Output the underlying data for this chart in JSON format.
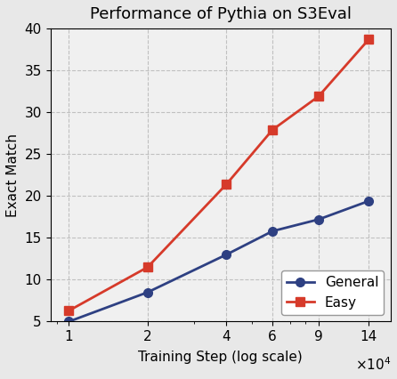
{
  "title": "Performance of Pythia on S3Eval",
  "xlabel": "Training Step (log scale)",
  "ylabel": "Exact Match",
  "x_values": [
    1,
    2,
    4,
    6,
    9,
    14
  ],
  "general_y": [
    5.0,
    8.5,
    13.0,
    15.8,
    17.2,
    19.4
  ],
  "easy_y": [
    6.3,
    11.5,
    21.4,
    27.9,
    31.9,
    38.7
  ],
  "general_color": "#2e4082",
  "easy_color": "#d63a2a",
  "general_marker": "o",
  "easy_marker": "s",
  "ylim": [
    5,
    40
  ],
  "yticks": [
    5,
    10,
    15,
    20,
    25,
    30,
    35,
    40
  ],
  "xticks": [
    1,
    2,
    4,
    6,
    9,
    14
  ],
  "grid_color": "#bbbbbb",
  "grid_style": "--",
  "legend_general": "General",
  "legend_easy": "Easy",
  "title_fontsize": 13,
  "label_fontsize": 11,
  "tick_fontsize": 11,
  "legend_fontsize": 11,
  "linewidth": 2.0,
  "markersize": 7,
  "fig_facecolor": "#e8e8e8",
  "ax_facecolor": "#f0f0f0"
}
